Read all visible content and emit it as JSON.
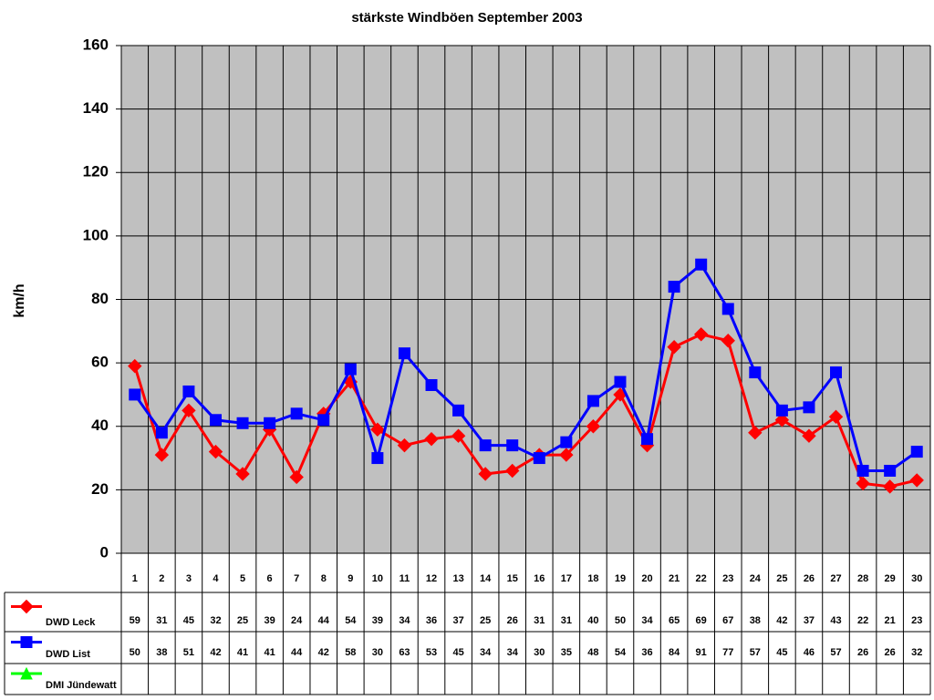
{
  "chart_data": {
    "type": "line",
    "title": "stärkste Windböen September 2003",
    "y_label": "km/h",
    "categories": [
      "1",
      "2",
      "3",
      "4",
      "5",
      "6",
      "7",
      "8",
      "9",
      "10",
      "11",
      "12",
      "13",
      "14",
      "15",
      "16",
      "17",
      "18",
      "19",
      "20",
      "21",
      "22",
      "23",
      "24",
      "25",
      "26",
      "27",
      "28",
      "29",
      "30"
    ],
    "series": [
      {
        "name": "DWD Leck",
        "color": "#ff0000",
        "marker": "diamond",
        "values": [
          59,
          31,
          45,
          32,
          25,
          39,
          24,
          44,
          54,
          39,
          34,
          36,
          37,
          25,
          26,
          31,
          31,
          40,
          50,
          34,
          65,
          69,
          67,
          38,
          42,
          37,
          43,
          22,
          21,
          23
        ]
      },
      {
        "name": "DWD List",
        "color": "#0000ff",
        "marker": "square",
        "values": [
          50,
          38,
          51,
          42,
          41,
          41,
          44,
          42,
          58,
          30,
          63,
          53,
          45,
          34,
          34,
          30,
          35,
          48,
          54,
          36,
          84,
          91,
          77,
          57,
          45,
          46,
          57,
          26,
          26,
          32
        ]
      },
      {
        "name": "DMI Jündewatt",
        "color": "#00ff00",
        "marker": "triangle",
        "values": [
          null,
          null,
          null,
          null,
          null,
          null,
          null,
          null,
          null,
          null,
          null,
          null,
          null,
          null,
          null,
          null,
          null,
          null,
          null,
          null,
          null,
          null,
          null,
          null,
          null,
          null,
          null,
          null,
          null,
          null
        ]
      }
    ],
    "ylim": [
      0,
      160
    ],
    "yticks": [
      0,
      20,
      40,
      60,
      80,
      100,
      120,
      140,
      160
    ],
    "grid": true,
    "data_table": true
  }
}
